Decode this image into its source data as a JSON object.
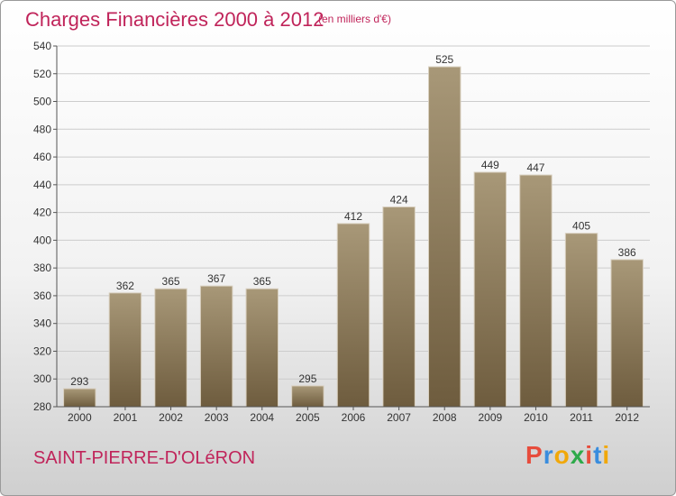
{
  "header": {
    "title": "Charges Financières 2000 à 2012",
    "subtitle": "(en milliers d'€)"
  },
  "footer": {
    "town": "SAINT-PIERRE-D'OLéRON",
    "logo_letters": [
      "P",
      "r",
      "o",
      "x",
      "i",
      "t",
      "i"
    ]
  },
  "chart_data": {
    "type": "bar",
    "categories": [
      "2000",
      "2001",
      "2002",
      "2003",
      "2004",
      "2005",
      "2006",
      "2007",
      "2008",
      "2009",
      "2010",
      "2011",
      "2012"
    ],
    "values": [
      293,
      362,
      365,
      367,
      365,
      295,
      412,
      424,
      525,
      449,
      447,
      405,
      386
    ],
    "title": "Charges Financières 2000 à 2012",
    "subtitle": "(en milliers d'€)",
    "xlabel": "",
    "ylabel": "",
    "ylim": [
      280,
      540
    ],
    "yticks": [
      280,
      300,
      320,
      340,
      360,
      380,
      400,
      420,
      440,
      460,
      480,
      500,
      520,
      540
    ],
    "grid": true,
    "colors": {
      "bar_top": "#a89878",
      "bar_bottom": "#6e5c3e",
      "grid": "#cccccc",
      "text_accent": "#c0245a"
    }
  }
}
